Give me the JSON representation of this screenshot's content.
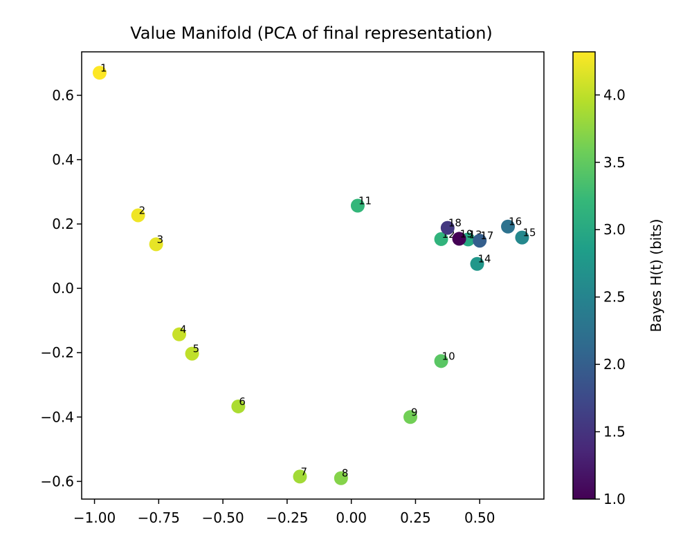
{
  "chart_data": {
    "type": "scatter",
    "title": "Value Manifold (PCA of final representation)",
    "xlabel": "",
    "ylabel": "",
    "xlim": [
      -1.05,
      0.75
    ],
    "ylim": [
      -0.655,
      0.735
    ],
    "xticks": [
      -1.0,
      -0.75,
      -0.5,
      -0.25,
      0.0,
      0.25,
      0.5
    ],
    "xtick_labels": [
      "−1.00",
      "−0.75",
      "−0.50",
      "−0.25",
      "0.00",
      "0.25",
      "0.50"
    ],
    "yticks": [
      -0.6,
      -0.4,
      -0.2,
      0.0,
      0.2,
      0.4,
      0.6
    ],
    "ytick_labels": [
      "−0.6",
      "−0.4",
      "−0.2",
      "0.0",
      "0.2",
      "0.4",
      "0.6"
    ],
    "colorbar": {
      "label": "Bayes H(t) (bits)",
      "colormap": "viridis",
      "range": [
        1.0,
        4.32
      ],
      "ticks": [
        1.0,
        1.5,
        2.0,
        2.5,
        3.0,
        3.5,
        4.0
      ],
      "tick_labels": [
        "1.0",
        "1.5",
        "2.0",
        "2.5",
        "3.0",
        "3.5",
        "4.0"
      ]
    },
    "points": [
      {
        "label": "1",
        "x": -0.98,
        "y": 0.67,
        "h": 4.32
      },
      {
        "label": "2",
        "x": -0.83,
        "y": 0.227,
        "h": 4.25
      },
      {
        "label": "3",
        "x": -0.76,
        "y": 0.137,
        "h": 4.2
      },
      {
        "label": "4",
        "x": -0.67,
        "y": -0.143,
        "h": 4.05
      },
      {
        "label": "5",
        "x": -0.62,
        "y": -0.203,
        "h": 4.0
      },
      {
        "label": "6",
        "x": -0.44,
        "y": -0.367,
        "h": 3.9
      },
      {
        "label": "7",
        "x": -0.2,
        "y": -0.585,
        "h": 3.85
      },
      {
        "label": "8",
        "x": -0.04,
        "y": -0.59,
        "h": 3.7
      },
      {
        "label": "9",
        "x": 0.23,
        "y": -0.4,
        "h": 3.6
      },
      {
        "label": "10",
        "x": 0.35,
        "y": -0.226,
        "h": 3.45
      },
      {
        "label": "11",
        "x": 0.025,
        "y": 0.257,
        "h": 3.2
      },
      {
        "label": "12",
        "x": 0.35,
        "y": 0.153,
        "h": 3.15
      },
      {
        "label": "13",
        "x": 0.455,
        "y": 0.152,
        "h": 3.0
      },
      {
        "label": "14",
        "x": 0.49,
        "y": 0.076,
        "h": 2.75
      },
      {
        "label": "15",
        "x": 0.665,
        "y": 0.158,
        "h": 2.55
      },
      {
        "label": "16",
        "x": 0.61,
        "y": 0.192,
        "h": 2.25
      },
      {
        "label": "17",
        "x": 0.5,
        "y": 0.148,
        "h": 2.0
      },
      {
        "label": "18",
        "x": 0.375,
        "y": 0.188,
        "h": 1.55
      },
      {
        "label": "19",
        "x": 0.42,
        "y": 0.154,
        "h": 1.0
      }
    ]
  }
}
